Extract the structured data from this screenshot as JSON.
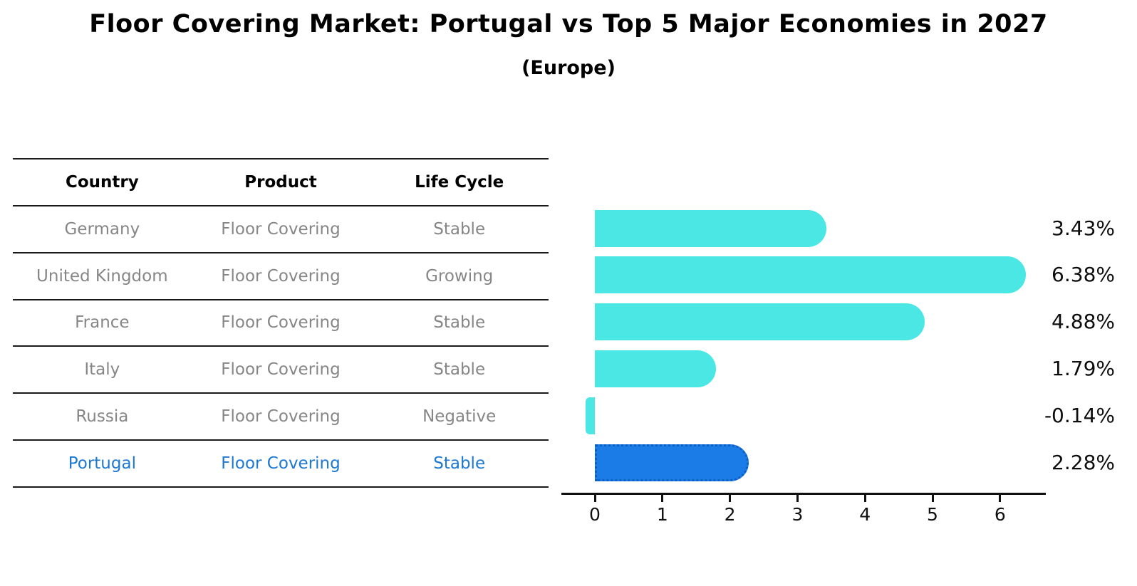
{
  "title": "Floor Covering Market: Portugal vs Top 5 Major Economies in 2027",
  "subtitle": "(Europe)",
  "table": {
    "headers": [
      "Country",
      "Product",
      "Life Cycle"
    ],
    "rows": [
      {
        "country": "Germany",
        "product": "Floor Covering",
        "life_cycle": "Stable",
        "highlight": false
      },
      {
        "country": "United Kingdom",
        "product": "Floor Covering",
        "life_cycle": "Growing",
        "highlight": false
      },
      {
        "country": "France",
        "product": "Floor Covering",
        "life_cycle": "Stable",
        "highlight": false
      },
      {
        "country": "Italy",
        "product": "Floor Covering",
        "life_cycle": "Stable",
        "highlight": false
      },
      {
        "country": "Russia",
        "product": "Floor Covering",
        "life_cycle": "Negative",
        "highlight": false
      },
      {
        "country": "Portugal",
        "product": "Floor Covering",
        "life_cycle": "Stable",
        "highlight": true
      }
    ]
  },
  "chart_data": {
    "type": "bar",
    "orientation": "horizontal",
    "title": "Floor Covering Market: Portugal vs Top 5 Major Economies in 2027",
    "subtitle": "(Europe)",
    "categories": [
      "Germany",
      "United Kingdom",
      "France",
      "Italy",
      "Russia",
      "Portugal"
    ],
    "values": [
      3.43,
      6.38,
      4.88,
      1.79,
      -0.14,
      2.28
    ],
    "value_labels": [
      "3.43%",
      "6.38%",
      "4.88%",
      "1.79%",
      "-0.14%",
      "2.28%"
    ],
    "unit": "percent",
    "x_ticks": [
      "0",
      "1",
      "2",
      "3",
      "4",
      "5",
      "6"
    ],
    "xlim": [
      -0.5,
      6.68
    ],
    "grid": false,
    "legend": false,
    "bar_color": "#4ae7e5",
    "highlight_bar_color": "#1b7ce8",
    "highlight_index": 5,
    "highlight_text_color": "#1c78d2",
    "axis_color": "#111111",
    "label_color": "#0d0d0d"
  }
}
